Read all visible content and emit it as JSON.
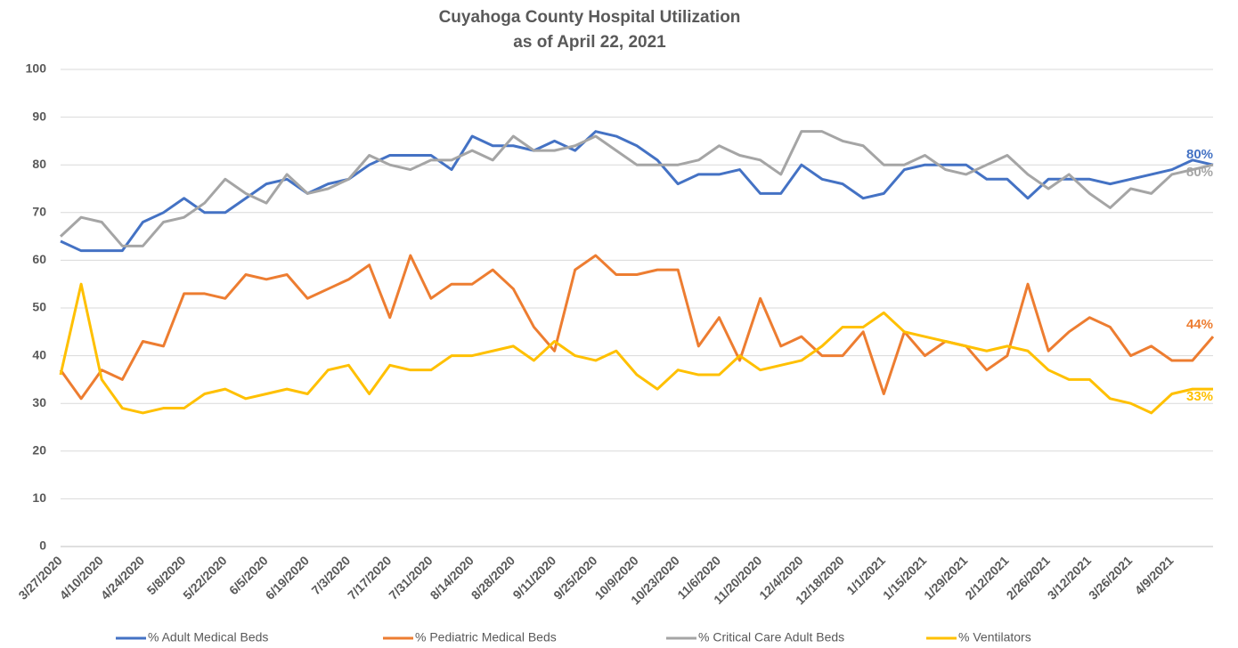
{
  "chart_data": {
    "type": "line",
    "title": "Cuyahoga County Hospital Utilization",
    "subtitle": "as of April 22, 2021",
    "categories": [
      "3/27/2020",
      null,
      "4/10/2020",
      null,
      "4/24/2020",
      null,
      "5/8/2020",
      null,
      "5/22/2020",
      null,
      "6/5/2020",
      null,
      "6/19/2020",
      null,
      "7/3/2020",
      null,
      "7/17/2020",
      null,
      "7/31/2020",
      null,
      "8/14/2020",
      null,
      "8/28/2020",
      null,
      "9/11/2020",
      null,
      "9/25/2020",
      null,
      "10/9/2020",
      null,
      "10/23/2020",
      null,
      "11/6/2020",
      null,
      "11/20/2020",
      null,
      "12/4/2020",
      null,
      "12/18/2020",
      null,
      "1/1/2021",
      null,
      "1/15/2021",
      null,
      "1/29/2021",
      null,
      "2/12/2021",
      null,
      "2/26/2021",
      null,
      "3/12/2021",
      null,
      "3/26/2021",
      null,
      "4/9/2021",
      null,
      null
    ],
    "series": [
      {
        "name": "% Adult Medical Beds",
        "color": "#4472c4",
        "values": [
          64,
          62,
          62,
          62,
          68,
          70,
          73,
          70,
          70,
          73,
          76,
          77,
          74,
          76,
          77,
          80,
          82,
          82,
          82,
          79,
          86,
          84,
          84,
          83,
          85,
          83,
          87,
          86,
          84,
          81,
          76,
          78,
          78,
          79,
          74,
          74,
          80,
          77,
          76,
          73,
          74,
          79,
          80,
          80,
          80,
          77,
          77,
          73,
          77,
          77,
          77,
          76,
          77,
          78,
          79,
          81,
          80
        ],
        "value_labels": [
          null,
          null,
          null,
          null,
          null,
          null,
          null,
          null,
          null,
          null,
          null,
          null,
          null,
          null,
          null,
          null,
          null,
          null,
          null,
          null,
          null,
          null,
          null,
          null,
          null,
          null,
          null,
          null,
          null,
          null,
          null,
          null,
          null,
          null,
          null,
          null,
          null,
          null,
          null,
          null,
          null,
          null,
          null,
          null,
          null,
          null,
          null,
          null,
          null,
          null,
          null,
          null,
          null,
          null,
          null,
          null,
          "80%"
        ]
      },
      {
        "name": "% Pediatric Medical Beds",
        "color": "#ed7d31",
        "values": [
          37,
          31,
          37,
          35,
          43,
          42,
          53,
          53,
          52,
          57,
          56,
          57,
          52,
          54,
          56,
          59,
          48,
          61,
          52,
          55,
          55,
          58,
          54,
          46,
          41,
          58,
          61,
          57,
          57,
          58,
          58,
          42,
          48,
          39,
          52,
          42,
          44,
          40,
          40,
          45,
          32,
          45,
          40,
          43,
          42,
          37,
          40,
          55,
          41,
          45,
          48,
          46,
          40,
          42,
          39,
          39,
          44
        ],
        "value_labels": [
          null,
          null,
          null,
          null,
          null,
          null,
          null,
          null,
          null,
          null,
          null,
          null,
          null,
          null,
          null,
          null,
          null,
          null,
          null,
          null,
          null,
          null,
          null,
          null,
          null,
          null,
          null,
          null,
          null,
          null,
          null,
          null,
          null,
          null,
          null,
          null,
          null,
          null,
          null,
          null,
          null,
          null,
          null,
          null,
          null,
          null,
          null,
          null,
          null,
          null,
          null,
          null,
          null,
          null,
          null,
          null,
          "44%"
        ]
      },
      {
        "name": "% Critical Care Adult Beds",
        "color": "#a5a5a5",
        "values": [
          65,
          69,
          68,
          63,
          63,
          68,
          69,
          72,
          77,
          74,
          72,
          78,
          74,
          75,
          77,
          82,
          80,
          79,
          81,
          81,
          83,
          81,
          86,
          83,
          83,
          84,
          86,
          83,
          80,
          80,
          80,
          81,
          84,
          82,
          81,
          78,
          87,
          87,
          85,
          84,
          80,
          80,
          82,
          79,
          78,
          80,
          82,
          78,
          75,
          78,
          74,
          71,
          75,
          74,
          78,
          79,
          80
        ],
        "value_labels": [
          null,
          null,
          null,
          null,
          null,
          null,
          null,
          null,
          null,
          null,
          null,
          null,
          null,
          null,
          null,
          null,
          null,
          null,
          null,
          null,
          null,
          null,
          null,
          null,
          null,
          null,
          null,
          null,
          null,
          null,
          null,
          null,
          null,
          null,
          null,
          null,
          null,
          null,
          null,
          null,
          null,
          null,
          null,
          null,
          null,
          null,
          null,
          null,
          null,
          null,
          null,
          null,
          null,
          null,
          null,
          null,
          "80%"
        ]
      },
      {
        "name": "% Ventilators",
        "color": "#ffc000",
        "values": [
          36,
          55,
          35,
          29,
          28,
          29,
          29,
          32,
          33,
          31,
          32,
          33,
          32,
          37,
          38,
          32,
          38,
          37,
          37,
          40,
          40,
          41,
          42,
          39,
          43,
          40,
          39,
          41,
          36,
          33,
          37,
          36,
          36,
          40,
          37,
          38,
          39,
          42,
          46,
          46,
          49,
          45,
          44,
          43,
          42,
          41,
          42,
          41,
          37,
          35,
          35,
          31,
          30,
          28,
          32,
          33,
          33
        ],
        "value_labels": [
          null,
          null,
          null,
          null,
          null,
          null,
          null,
          null,
          null,
          null,
          null,
          null,
          null,
          null,
          null,
          null,
          null,
          null,
          null,
          null,
          null,
          null,
          null,
          null,
          null,
          null,
          null,
          null,
          null,
          null,
          null,
          null,
          null,
          null,
          null,
          null,
          null,
          null,
          null,
          null,
          null,
          null,
          null,
          null,
          null,
          null,
          null,
          null,
          null,
          null,
          null,
          null,
          null,
          null,
          null,
          null,
          "33%"
        ]
      }
    ],
    "ylim": [
      0,
      100
    ],
    "yticks": [
      0,
      10,
      20,
      30,
      40,
      50,
      60,
      70,
      80,
      90,
      100
    ],
    "grid": true,
    "legend": "bottom"
  }
}
